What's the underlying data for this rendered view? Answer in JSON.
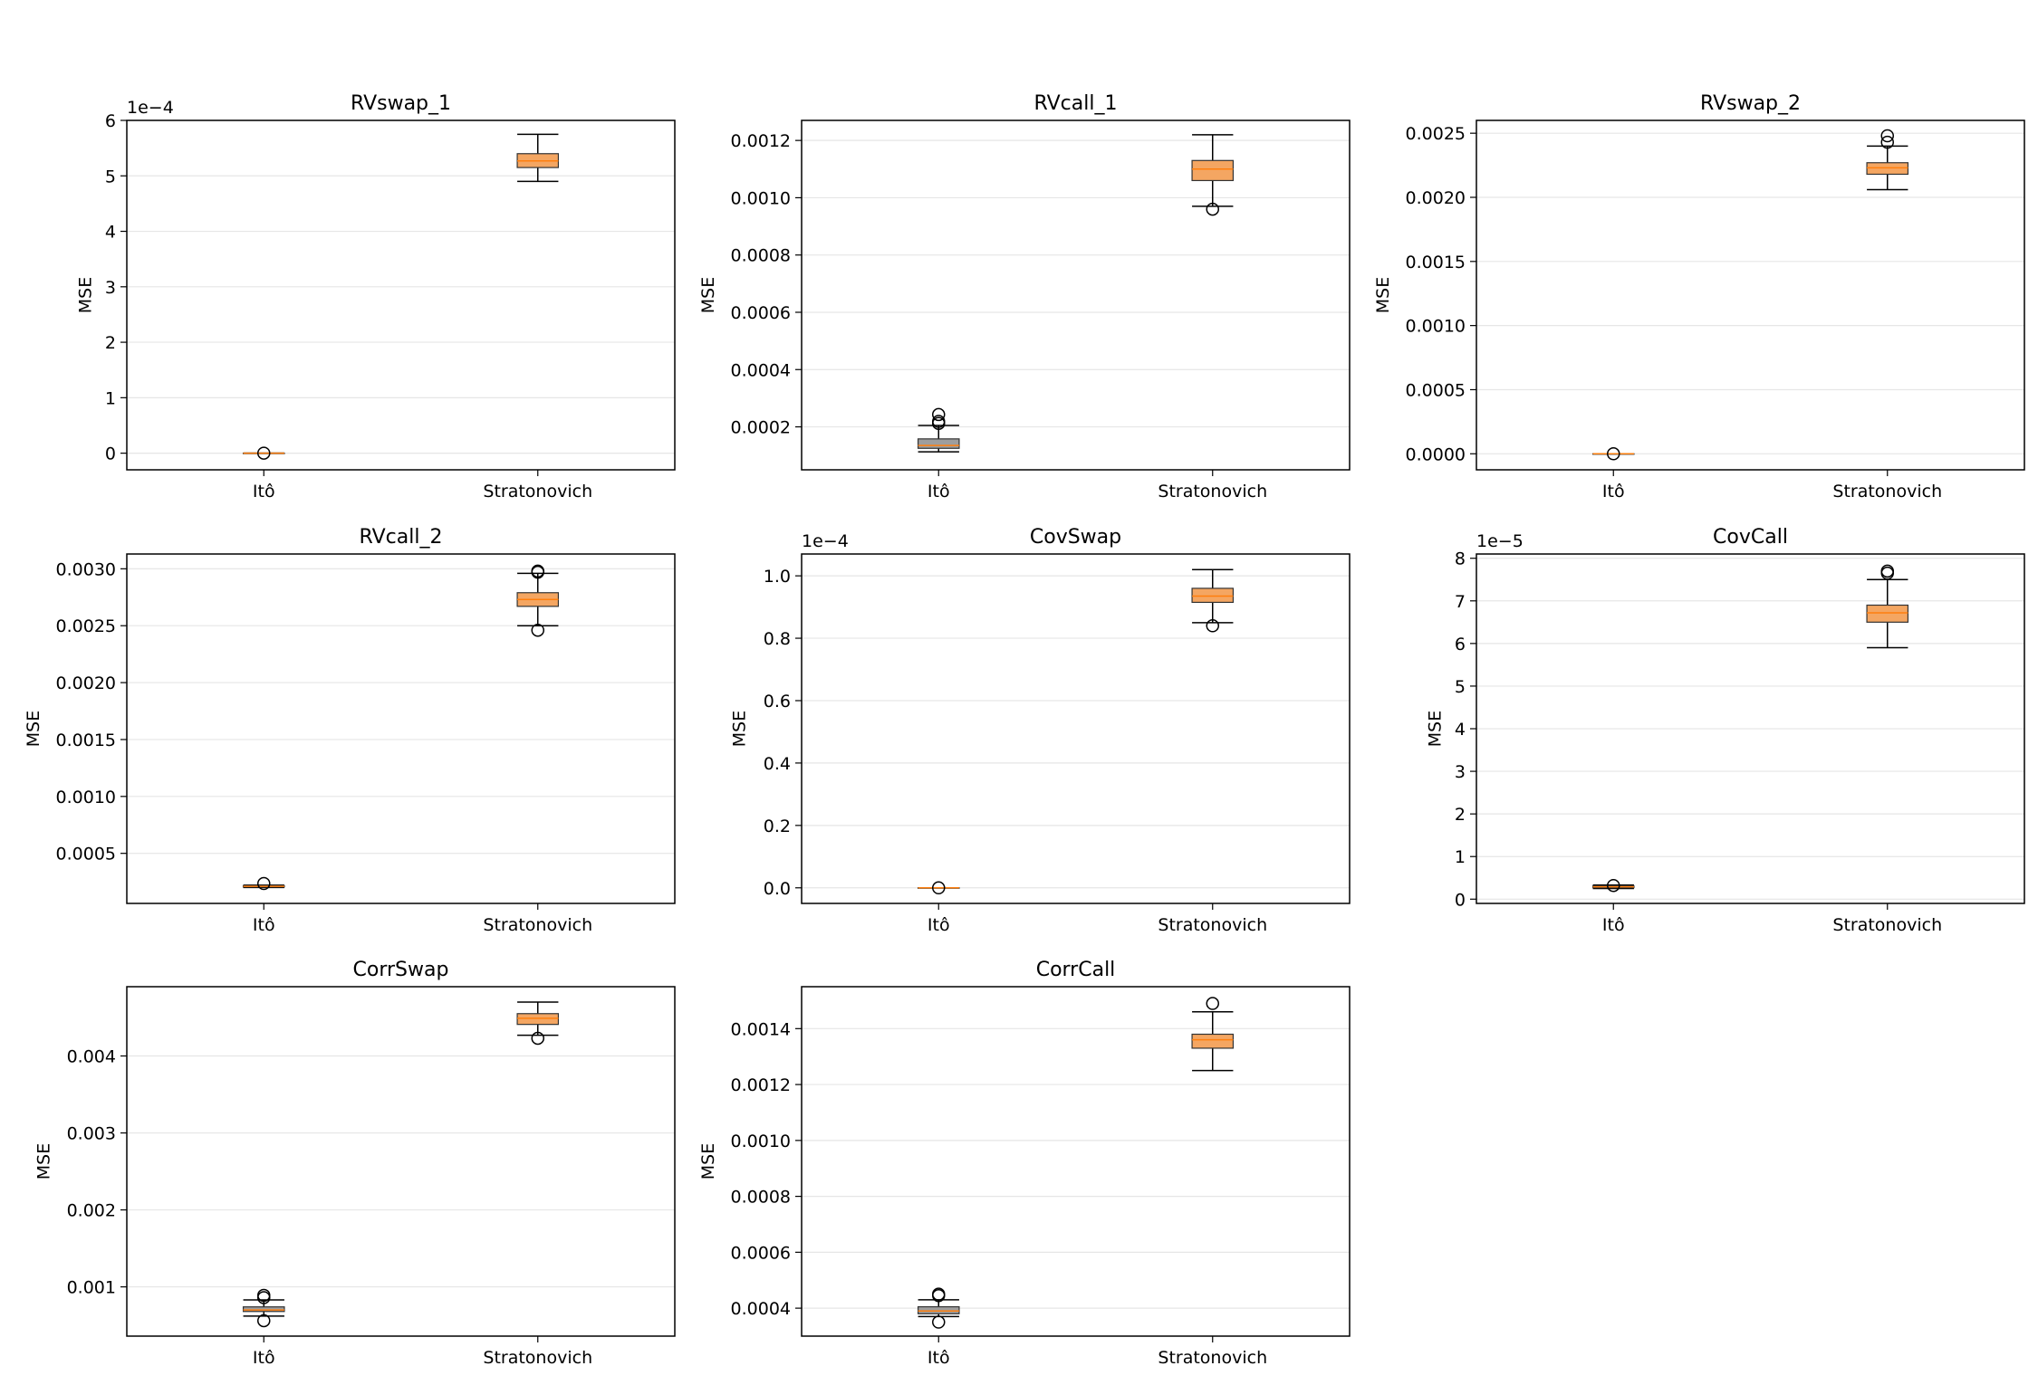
{
  "chart_data": [
    {
      "type": "box",
      "title": "RVswap_1",
      "ylabel": "MSE",
      "categories": [
        "Itô",
        "Stratonovich"
      ],
      "ylim": [
        -0.3,
        6.0
      ],
      "yticks": [
        0,
        1,
        2,
        3,
        4,
        5,
        6
      ],
      "ytick_labels": [
        "0",
        "1",
        "2",
        "3",
        "4",
        "5",
        "6"
      ],
      "offset_text": "1e−4",
      "boxes": [
        {
          "whislo": 0.0,
          "q1": 0.0,
          "med": 0.0,
          "q3": 0.0,
          "whishi": 0.0,
          "fliers": [
            0.0
          ]
        },
        {
          "whislo": 4.9,
          "q1": 5.15,
          "med": 5.27,
          "q3": 5.4,
          "whishi": 5.75,
          "fliers": []
        }
      ]
    },
    {
      "type": "box",
      "title": "RVcall_1",
      "ylabel": "MSE",
      "categories": [
        "Itô",
        "Stratonovich"
      ],
      "ylim": [
        5e-05,
        0.00127
      ],
      "yticks": [
        0.0002,
        0.0004,
        0.0006,
        0.0008,
        0.001,
        0.0012
      ],
      "ytick_labels": [
        "0.0002",
        "0.0004",
        "0.0006",
        "0.0008",
        "0.0010",
        "0.0012"
      ],
      "offset_text": "",
      "boxes": [
        {
          "whislo": 0.000113,
          "q1": 0.000125,
          "med": 0.000135,
          "q3": 0.000158,
          "whishi": 0.000205,
          "fliers": [
            0.000212,
            0.000219,
            0.000243
          ]
        },
        {
          "whislo": 0.00097,
          "q1": 0.00106,
          "med": 0.0011,
          "q3": 0.00113,
          "whishi": 0.00122,
          "fliers": [
            0.00096
          ]
        }
      ]
    },
    {
      "type": "box",
      "title": "RVswap_2",
      "ylabel": "MSE",
      "categories": [
        "Itô",
        "Stratonovich"
      ],
      "ylim": [
        -0.000125,
        0.0026
      ],
      "yticks": [
        0.0,
        0.0005,
        0.001,
        0.0015,
        0.002,
        0.0025
      ],
      "ytick_labels": [
        "0.0000",
        "0.0005",
        "0.0010",
        "0.0015",
        "0.0020",
        "0.0025"
      ],
      "offset_text": "",
      "boxes": [
        {
          "whislo": 0.0,
          "q1": 0.0,
          "med": 0.0,
          "q3": 0.0,
          "whishi": 0.0,
          "fliers": [
            0.0
          ]
        },
        {
          "whislo": 0.00206,
          "q1": 0.00218,
          "med": 0.00223,
          "q3": 0.00227,
          "whishi": 0.0024,
          "fliers": [
            0.00243,
            0.00248
          ]
        }
      ]
    },
    {
      "type": "box",
      "title": "RVcall_2",
      "ylabel": "MSE",
      "categories": [
        "Itô",
        "Stratonovich"
      ],
      "ylim": [
        6e-05,
        0.00313
      ],
      "yticks": [
        0.0005,
        0.001,
        0.0015,
        0.002,
        0.0025,
        0.003
      ],
      "ytick_labels": [
        "0.0005",
        "0.0010",
        "0.0015",
        "0.0020",
        "0.0025",
        "0.0030"
      ],
      "offset_text": "",
      "boxes": [
        {
          "whislo": 0.0002,
          "q1": 0.000205,
          "med": 0.00021,
          "q3": 0.000215,
          "whishi": 0.00022,
          "fliers": [
            0.000235
          ]
        },
        {
          "whislo": 0.0025,
          "q1": 0.00267,
          "med": 0.00273,
          "q3": 0.00279,
          "whishi": 0.00296,
          "fliers": [
            0.00246,
            0.00297,
            0.00298
          ]
        }
      ]
    },
    {
      "type": "box",
      "title": "CovSwap",
      "ylabel": "MSE",
      "categories": [
        "Itô",
        "Stratonovich"
      ],
      "ylim": [
        -0.05,
        1.07
      ],
      "yticks": [
        0.0,
        0.2,
        0.4,
        0.6,
        0.8,
        1.0
      ],
      "ytick_labels": [
        "0.0",
        "0.2",
        "0.4",
        "0.6",
        "0.8",
        "1.0"
      ],
      "offset_text": "1e−4",
      "boxes": [
        {
          "whislo": 0.0,
          "q1": 0.0,
          "med": 0.0,
          "q3": 0.0,
          "whishi": 0.0,
          "fliers": [
            0.0
          ]
        },
        {
          "whislo": 0.85,
          "q1": 0.915,
          "med": 0.935,
          "q3": 0.96,
          "whishi": 1.02,
          "fliers": [
            0.84
          ]
        }
      ]
    },
    {
      "type": "box",
      "title": "CovCall",
      "ylabel": "MSE",
      "categories": [
        "Itô",
        "Stratonovich"
      ],
      "ylim": [
        -0.1,
        8.1
      ],
      "yticks": [
        0,
        1,
        2,
        3,
        4,
        5,
        6,
        7,
        8
      ],
      "ytick_labels": [
        "0",
        "1",
        "2",
        "3",
        "4",
        "5",
        "6",
        "7",
        "8"
      ],
      "offset_text": "1e−5",
      "boxes": [
        {
          "whislo": 0.25,
          "q1": 0.27,
          "med": 0.29,
          "q3": 0.31,
          "whishi": 0.33,
          "fliers": [
            0.32
          ]
        },
        {
          "whislo": 5.9,
          "q1": 6.5,
          "med": 6.72,
          "q3": 6.9,
          "whishi": 7.5,
          "fliers": [
            7.65,
            7.7
          ]
        }
      ]
    },
    {
      "type": "box",
      "title": "CorrSwap",
      "ylabel": "MSE",
      "categories": [
        "Itô",
        "Stratonovich"
      ],
      "ylim": [
        0.00036,
        0.0049
      ],
      "yticks": [
        0.001,
        0.002,
        0.003,
        0.004
      ],
      "ytick_labels": [
        "0.001",
        "0.002",
        "0.003",
        "0.004"
      ],
      "offset_text": "",
      "boxes": [
        {
          "whislo": 0.00062,
          "q1": 0.00068,
          "med": 0.0007,
          "q3": 0.00074,
          "whishi": 0.00083,
          "fliers": [
            0.00056,
            0.00086,
            0.00089
          ]
        },
        {
          "whislo": 0.00427,
          "q1": 0.00441,
          "med": 0.00449,
          "q3": 0.00455,
          "whishi": 0.0047,
          "fliers": [
            0.00423
          ]
        }
      ]
    },
    {
      "type": "box",
      "title": "CorrCall",
      "ylabel": "MSE",
      "categories": [
        "Itô",
        "Stratonovich"
      ],
      "ylim": [
        0.0003,
        0.00155
      ],
      "yticks": [
        0.0004,
        0.0006,
        0.0008,
        0.001,
        0.0012,
        0.0014
      ],
      "ytick_labels": [
        "0.0004",
        "0.0006",
        "0.0008",
        "0.0010",
        "0.0012",
        "0.0014"
      ],
      "offset_text": "",
      "boxes": [
        {
          "whislo": 0.00037,
          "q1": 0.00038,
          "med": 0.00039,
          "q3": 0.000405,
          "whishi": 0.00043,
          "fliers": [
            0.00035,
            0.000445,
            0.00045
          ]
        },
        {
          "whislo": 0.00125,
          "q1": 0.00133,
          "med": 0.00136,
          "q3": 0.00138,
          "whishi": 0.00146,
          "fliers": [
            0.00149
          ]
        }
      ]
    }
  ],
  "colors": {
    "box_strat_fill": "#f4a662",
    "box_ito_fill": "#9e9e9e",
    "median": "#ff7f0e",
    "grid": "#e6e6e6",
    "axis": "#000000"
  }
}
